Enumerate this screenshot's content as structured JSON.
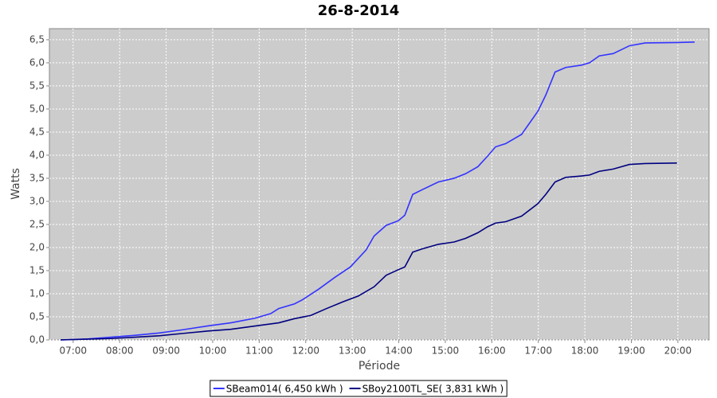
{
  "chart_data": {
    "type": "line",
    "title": "26-8-2014",
    "x_label": "Période",
    "y_label": "Watts",
    "xlim": [
      6.49,
      20.67
    ],
    "ylim": [
      0,
      6.74
    ],
    "grid": true,
    "legend": "bottom",
    "background": "#cccccc",
    "xticks": [
      {
        "value": 7,
        "label": "07:00"
      },
      {
        "value": 8,
        "label": "08:00"
      },
      {
        "value": 9,
        "label": "09:00"
      },
      {
        "value": 10,
        "label": "10:00"
      },
      {
        "value": 11,
        "label": "11:00"
      },
      {
        "value": 12,
        "label": "12:00"
      },
      {
        "value": 13,
        "label": "13:00"
      },
      {
        "value": 14,
        "label": "14:00"
      },
      {
        "value": 15,
        "label": "15:00"
      },
      {
        "value": 16,
        "label": "16:00"
      },
      {
        "value": 17,
        "label": "17:00"
      },
      {
        "value": 18,
        "label": "18:00"
      },
      {
        "value": 19,
        "label": "19:00"
      },
      {
        "value": 20,
        "label": "20:00"
      }
    ],
    "yticks": [
      {
        "value": 0,
        "label": "0,0"
      },
      {
        "value": 0.5,
        "label": "0,5"
      },
      {
        "value": 1,
        "label": "1,0"
      },
      {
        "value": 1.5,
        "label": "1,5"
      },
      {
        "value": 2,
        "label": "2,0"
      },
      {
        "value": 2.5,
        "label": "2,5"
      },
      {
        "value": 3,
        "label": "3,0"
      },
      {
        "value": 3.5,
        "label": "3,5"
      },
      {
        "value": 4,
        "label": "4,0"
      },
      {
        "value": 4.5,
        "label": "4,5"
      },
      {
        "value": 5,
        "label": "5,0"
      },
      {
        "value": 5.5,
        "label": "5,5"
      },
      {
        "value": 6,
        "label": "6,0"
      },
      {
        "value": 6.5,
        "label": "6,5"
      }
    ],
    "series": [
      {
        "name": "SBeam014( 6,450 kWh )",
        "color": "#3333ff",
        "x": [
          6.73,
          7.31,
          7.82,
          8.34,
          8.85,
          9.36,
          9.88,
          10.39,
          10.91,
          11.25,
          11.42,
          11.76,
          11.93,
          12.28,
          12.62,
          12.96,
          13.3,
          13.47,
          13.73,
          13.99,
          14.13,
          14.3,
          14.5,
          14.85,
          15.19,
          15.44,
          15.7,
          15.91,
          16.08,
          16.3,
          16.64,
          16.99,
          17.16,
          17.36,
          17.59,
          17.93,
          18.1,
          18.31,
          18.61,
          18.96,
          19.3,
          19.98,
          20.36
        ],
        "values": [
          0,
          0.02,
          0.06,
          0.1,
          0.15,
          0.22,
          0.3,
          0.37,
          0.47,
          0.57,
          0.68,
          0.78,
          0.87,
          1.1,
          1.35,
          1.58,
          1.95,
          2.25,
          2.48,
          2.58,
          2.7,
          3.15,
          3.25,
          3.42,
          3.5,
          3.6,
          3.75,
          3.98,
          4.18,
          4.25,
          4.45,
          4.95,
          5.3,
          5.8,
          5.9,
          5.95,
          6.0,
          6.15,
          6.2,
          6.37,
          6.43,
          6.44,
          6.45
        ]
      },
      {
        "name": "SBoy2100TL_SE( 3,831 kWh )",
        "color": "#000080",
        "x": [
          6.73,
          7.82,
          8.34,
          8.85,
          9.36,
          9.88,
          10.39,
          10.91,
          11.42,
          11.76,
          12.11,
          12.45,
          12.79,
          13.13,
          13.47,
          13.73,
          13.99,
          14.13,
          14.3,
          14.5,
          14.85,
          15.19,
          15.44,
          15.7,
          15.91,
          16.08,
          16.3,
          16.64,
          16.99,
          17.16,
          17.36,
          17.59,
          17.93,
          18.1,
          18.31,
          18.61,
          18.96,
          19.3,
          19.98
        ],
        "values": [
          0,
          0.03,
          0.06,
          0.09,
          0.14,
          0.19,
          0.23,
          0.3,
          0.37,
          0.46,
          0.53,
          0.68,
          0.82,
          0.95,
          1.15,
          1.4,
          1.52,
          1.58,
          1.9,
          1.97,
          2.07,
          2.12,
          2.2,
          2.32,
          2.45,
          2.53,
          2.56,
          2.68,
          2.95,
          3.15,
          3.42,
          3.52,
          3.55,
          3.57,
          3.65,
          3.7,
          3.8,
          3.82,
          3.83
        ]
      }
    ]
  }
}
